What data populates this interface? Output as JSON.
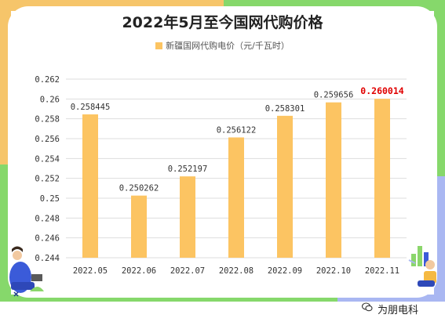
{
  "colors": {
    "bar": "#FCC462",
    "grid": "#DDDDDD",
    "axis_text": "#333333",
    "highlight_label": "#E00000",
    "frame_orange": "#F6C56A",
    "frame_green": "#86D86B",
    "frame_blue": "#A9B7F2"
  },
  "chart_data": {
    "type": "bar",
    "title": "2022年5月至今国网代购价格",
    "categories": [
      "2022.05",
      "2022.06",
      "2022.07",
      "2022.08",
      "2022.09",
      "2022.10",
      "2022.11"
    ],
    "series": [
      {
        "name": "新疆国网代购电价（元/千瓦时）",
        "values": [
          0.258445,
          0.250262,
          0.252197,
          0.256122,
          0.258301,
          0.259656,
          0.260014
        ]
      }
    ],
    "value_labels": [
      "0.258445",
      "0.250262",
      "0.252197",
      "0.256122",
      "0.258301",
      "0.259656",
      "0.260014"
    ],
    "highlight_index": 6,
    "ylim": [
      0.244,
      0.262
    ],
    "yticks": [
      "0.244",
      "0.246",
      "0.248",
      "0.25",
      "0.252",
      "0.254",
      "0.256",
      "0.258",
      "0.26",
      "0.262"
    ],
    "grid": true,
    "legend_position": "top-center"
  },
  "watermark": {
    "text": "为朋电科",
    "icon": "wechat-icon"
  }
}
